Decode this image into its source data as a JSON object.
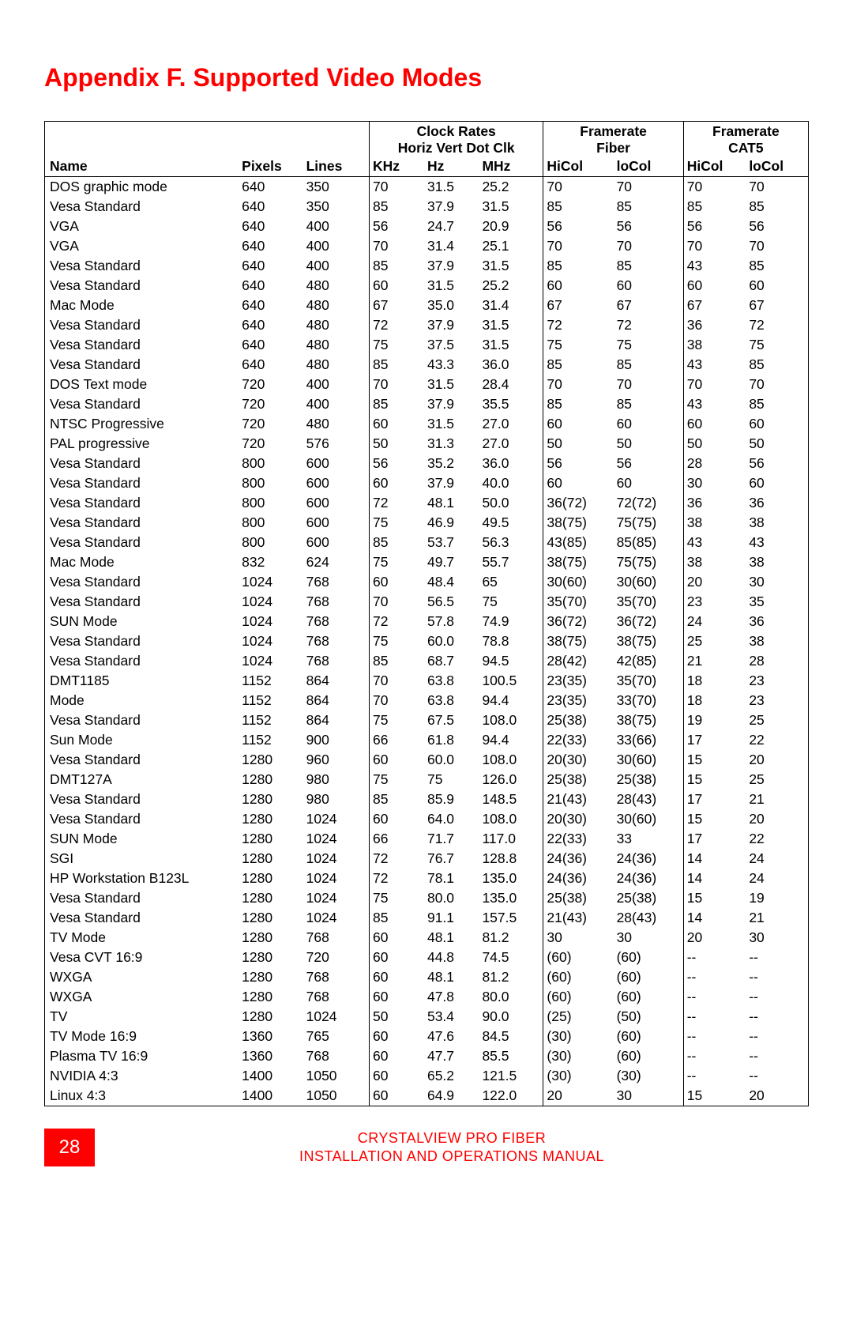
{
  "title": "Appendix F. Supported Video Modes",
  "page_number": "28",
  "footer_line1": "CRYSTALVIEW PRO FIBER",
  "footer_line2": "INSTALLATION AND OPERATIONS MANUAL",
  "colors": {
    "accent": "#ff0000",
    "text": "#000000",
    "background": "#ffffff"
  },
  "headers": {
    "name": "Name",
    "pixels": "Pixels",
    "lines": "Lines",
    "clock_group": "Clock Rates",
    "clock_sub": "Horiz Vert Dot Clk",
    "khz": "KHz",
    "hz": "Hz",
    "mhz": "MHz",
    "fiber_group_l1": "Framerate",
    "fiber_group_l2": "Fiber",
    "cat5_group_l1": "Framerate",
    "cat5_group_l2": "CAT5",
    "hicol": "HiCol",
    "locol": "loCol"
  },
  "rows": [
    {
      "name": "DOS graphic mode",
      "px": "640",
      "ln": "350",
      "khz": "70",
      "hz": "31.5",
      "mhz": "25.2",
      "fhi": "70",
      "flo": "70",
      "chi": "70",
      "clo": "70"
    },
    {
      "name": "Vesa Standard",
      "px": "640",
      "ln": "350",
      "khz": "85",
      "hz": "37.9",
      "mhz": "31.5",
      "fhi": "85",
      "flo": "85",
      "chi": "85",
      "clo": "85"
    },
    {
      "name": "VGA",
      "px": "640",
      "ln": "400",
      "khz": "56",
      "hz": "24.7",
      "mhz": "20.9",
      "fhi": "56",
      "flo": "56",
      "chi": "56",
      "clo": "56"
    },
    {
      "name": "VGA",
      "px": "640",
      "ln": "400",
      "khz": "70",
      "hz": "31.4",
      "mhz": "25.1",
      "fhi": "70",
      "flo": "70",
      "chi": "70",
      "clo": "70"
    },
    {
      "name": "Vesa Standard",
      "px": "640",
      "ln": "400",
      "khz": "85",
      "hz": "37.9",
      "mhz": "31.5",
      "fhi": "85",
      "flo": "85",
      "chi": "43",
      "clo": "85"
    },
    {
      "name": "Vesa Standard",
      "px": "640",
      "ln": "480",
      "khz": "60",
      "hz": "31.5",
      "mhz": "25.2",
      "fhi": "60",
      "flo": "60",
      "chi": "60",
      "clo": "60"
    },
    {
      "name": "Mac Mode",
      "px": "640",
      "ln": "480",
      "khz": "67",
      "hz": "35.0",
      "mhz": "31.4",
      "fhi": "67",
      "flo": "67",
      "chi": "67",
      "clo": "67"
    },
    {
      "name": "Vesa Standard",
      "px": "640",
      "ln": "480",
      "khz": "72",
      "hz": "37.9",
      "mhz": "31.5",
      "fhi": "72",
      "flo": "72",
      "chi": "36",
      "clo": "72"
    },
    {
      "name": "Vesa Standard",
      "px": "640",
      "ln": "480",
      "khz": "75",
      "hz": "37.5",
      "mhz": "31.5",
      "fhi": "75",
      "flo": "75",
      "chi": "38",
      "clo": "75"
    },
    {
      "name": "Vesa Standard",
      "px": "640",
      "ln": "480",
      "khz": "85",
      "hz": "43.3",
      "mhz": "36.0",
      "fhi": "85",
      "flo": "85",
      "chi": "43",
      "clo": "85"
    },
    {
      "name": "DOS Text mode",
      "px": "720",
      "ln": "400",
      "khz": "70",
      "hz": "31.5",
      "mhz": "28.4",
      "fhi": "70",
      "flo": "70",
      "chi": "70",
      "clo": "70"
    },
    {
      "name": "Vesa Standard",
      "px": "720",
      "ln": "400",
      "khz": "85",
      "hz": "37.9",
      "mhz": "35.5",
      "fhi": "85",
      "flo": "85",
      "chi": "43",
      "clo": "85"
    },
    {
      "name": "NTSC Progressive",
      "px": "720",
      "ln": "480",
      "khz": "60",
      "hz": "31.5",
      "mhz": "27.0",
      "fhi": "60",
      "flo": "60",
      "chi": "60",
      "clo": "60"
    },
    {
      "name": "PAL progressive",
      "px": "720",
      "ln": "576",
      "khz": "50",
      "hz": "31.3",
      "mhz": "27.0",
      "fhi": "50",
      "flo": "50",
      "chi": "50",
      "clo": "50"
    },
    {
      "name": "Vesa Standard",
      "px": "800",
      "ln": "600",
      "khz": "56",
      "hz": "35.2",
      "mhz": "36.0",
      "fhi": "56",
      "flo": "56",
      "chi": "28",
      "clo": "56"
    },
    {
      "name": "Vesa Standard",
      "px": "800",
      "ln": "600",
      "khz": "60",
      "hz": "37.9",
      "mhz": "40.0",
      "fhi": "60",
      "flo": "60",
      "chi": "30",
      "clo": "60"
    },
    {
      "name": "Vesa Standard",
      "px": "800",
      "ln": "600",
      "khz": "72",
      "hz": "48.1",
      "mhz": "50.0",
      "fhi": "36(72)",
      "flo": "72(72)",
      "chi": "36",
      "clo": "36"
    },
    {
      "name": "Vesa Standard",
      "px": "800",
      "ln": "600",
      "khz": "75",
      "hz": "46.9",
      "mhz": "49.5",
      "fhi": "38(75)",
      "flo": "75(75)",
      "chi": "38",
      "clo": "38"
    },
    {
      "name": "Vesa Standard",
      "px": "800",
      "ln": "600",
      "khz": "85",
      "hz": "53.7",
      "mhz": "56.3",
      "fhi": "43(85)",
      "flo": "85(85)",
      "chi": "43",
      "clo": "43"
    },
    {
      "name": "Mac Mode",
      "px": "832",
      "ln": "624",
      "khz": "75",
      "hz": "49.7",
      "mhz": "55.7",
      "fhi": "38(75)",
      "flo": "75(75)",
      "chi": "38",
      "clo": "38"
    },
    {
      "name": "Vesa Standard",
      "px": "1024",
      "ln": "768",
      "khz": "60",
      "hz": "48.4",
      "mhz": "65",
      "fhi": "30(60)",
      "flo": "30(60)",
      "chi": "20",
      "clo": "30"
    },
    {
      "name": "Vesa Standard",
      "px": "1024",
      "ln": "768",
      "khz": "70",
      "hz": "56.5",
      "mhz": "75",
      "fhi": "35(70)",
      "flo": "35(70)",
      "chi": "23",
      "clo": "35"
    },
    {
      "name": "SUN Mode",
      "px": "1024",
      "ln": "768",
      "khz": "72",
      "hz": "57.8",
      "mhz": "74.9",
      "fhi": "36(72)",
      "flo": "36(72)",
      "chi": "24",
      "clo": "36"
    },
    {
      "name": "Vesa Standard",
      "px": "1024",
      "ln": "768",
      "khz": "75",
      "hz": "60.0",
      "mhz": "78.8",
      "fhi": "38(75)",
      "flo": "38(75)",
      "chi": "25",
      "clo": "38"
    },
    {
      "name": "Vesa Standard",
      "px": "1024",
      "ln": "768",
      "khz": "85",
      "hz": "68.7",
      "mhz": "94.5",
      "fhi": "28(42)",
      "flo": "42(85)",
      "chi": "21",
      "clo": "28"
    },
    {
      "name": "DMT1185",
      "px": "1152",
      "ln": "864",
      "khz": "70",
      "hz": "63.8",
      "mhz": "100.5",
      "fhi": "23(35)",
      "flo": "35(70)",
      "chi": "18",
      "clo": "23"
    },
    {
      "name": "Mode",
      "px": "1152",
      "ln": "864",
      "khz": "70",
      "hz": "63.8",
      "mhz": "94.4",
      "fhi": "23(35)",
      "flo": "33(70)",
      "chi": "18",
      "clo": "23"
    },
    {
      "name": "Vesa Standard",
      "px": "1152",
      "ln": "864",
      "khz": "75",
      "hz": "67.5",
      "mhz": "108.0",
      "fhi": "25(38)",
      "flo": "38(75)",
      "chi": "19",
      "clo": "25"
    },
    {
      "name": "Sun Mode",
      "px": "1152",
      "ln": "900",
      "khz": "66",
      "hz": "61.8",
      "mhz": "94.4",
      "fhi": "22(33)",
      "flo": "33(66)",
      "chi": "17",
      "clo": "22"
    },
    {
      "name": "Vesa Standard",
      "px": "1280",
      "ln": "960",
      "khz": "60",
      "hz": "60.0",
      "mhz": "108.0",
      "fhi": "20(30)",
      "flo": "30(60)",
      "chi": "15",
      "clo": "20"
    },
    {
      "name": "DMT127A",
      "px": "1280",
      "ln": "980",
      "khz": "75",
      "hz": "75",
      "mhz": "126.0",
      "fhi": "25(38)",
      "flo": "25(38)",
      "chi": "15",
      "clo": "25"
    },
    {
      "name": "Vesa Standard",
      "px": "1280",
      "ln": "980",
      "khz": "85",
      "hz": "85.9",
      "mhz": "148.5",
      "fhi": "21(43)",
      "flo": "28(43)",
      "chi": "17",
      "clo": "21"
    },
    {
      "name": "Vesa Standard",
      "px": "1280",
      "ln": "1024",
      "khz": "60",
      "hz": "64.0",
      "mhz": "108.0",
      "fhi": "20(30)",
      "flo": "30(60)",
      "chi": "15",
      "clo": "20"
    },
    {
      "name": "SUN Mode",
      "px": "1280",
      "ln": "1024",
      "khz": "66",
      "hz": "71.7",
      "mhz": "117.0",
      "fhi": "22(33)",
      "flo": "33",
      "chi": "17",
      "clo": "22"
    },
    {
      "name": "SGI",
      "px": "1280",
      "ln": "1024",
      "khz": "72",
      "hz": "76.7",
      "mhz": "128.8",
      "fhi": "24(36)",
      "flo": "24(36)",
      "chi": "14",
      "clo": "24"
    },
    {
      "name": "HP Workstation B123L",
      "px": "1280",
      "ln": "1024",
      "khz": "72",
      "hz": "78.1",
      "mhz": "135.0",
      "fhi": "24(36)",
      "flo": "24(36)",
      "chi": "14",
      "clo": "24"
    },
    {
      "name": "Vesa Standard",
      "px": "1280",
      "ln": "1024",
      "khz": "75",
      "hz": "80.0",
      "mhz": "135.0",
      "fhi": "25(38)",
      "flo": "25(38)",
      "chi": "15",
      "clo": "19"
    },
    {
      "name": "Vesa Standard",
      "px": "1280",
      "ln": "1024",
      "khz": "85",
      "hz": "91.1",
      "mhz": "157.5",
      "fhi": "21(43)",
      "flo": "28(43)",
      "chi": "14",
      "clo": "21"
    },
    {
      "name": "TV Mode",
      "px": "1280",
      "ln": "768",
      "khz": "60",
      "hz": "48.1",
      "mhz": "81.2",
      "fhi": "30",
      "flo": "30",
      "chi": "20",
      "clo": "30"
    },
    {
      "name": "Vesa CVT 16:9",
      "px": "1280",
      "ln": "720",
      "khz": "60",
      "hz": "44.8",
      "mhz": "74.5",
      "fhi": "(60)",
      "flo": "(60)",
      "chi": "--",
      "clo": "--"
    },
    {
      "name": "WXGA",
      "px": "1280",
      "ln": "768",
      "khz": "60",
      "hz": "48.1",
      "mhz": "81.2",
      "fhi": "(60)",
      "flo": "(60)",
      "chi": "--",
      "clo": "--"
    },
    {
      "name": "WXGA",
      "px": "1280",
      "ln": "768",
      "khz": "60",
      "hz": "47.8",
      "mhz": "80.0",
      "fhi": "(60)",
      "flo": "(60)",
      "chi": "--",
      "clo": "--"
    },
    {
      "name": "TV",
      "px": "1280",
      "ln": "1024",
      "khz": "50",
      "hz": "53.4",
      "mhz": "90.0",
      "fhi": "(25)",
      "flo": "(50)",
      "chi": "--",
      "clo": "--"
    },
    {
      "name": "TV Mode 16:9",
      "px": "1360",
      "ln": "765",
      "khz": "60",
      "hz": "47.6",
      "mhz": "84.5",
      "fhi": "(30)",
      "flo": "(60)",
      "chi": "--",
      "clo": "--"
    },
    {
      "name": "Plasma TV 16:9",
      "px": "1360",
      "ln": "768",
      "khz": "60",
      "hz": "47.7",
      "mhz": "85.5",
      "fhi": "(30)",
      "flo": "(60)",
      "chi": "--",
      "clo": "--"
    },
    {
      "name": "NVIDIA 4:3",
      "px": "1400",
      "ln": "1050",
      "khz": "60",
      "hz": "65.2",
      "mhz": "121.5",
      "fhi": "(30)",
      "flo": "(30)",
      "chi": "--",
      "clo": "--"
    },
    {
      "name": "Linux 4:3",
      "px": "1400",
      "ln": "1050",
      "khz": "60",
      "hz": "64.9",
      "mhz": "122.0",
      "fhi": "20",
      "flo": "30",
      "chi": "15",
      "clo": "20"
    }
  ]
}
